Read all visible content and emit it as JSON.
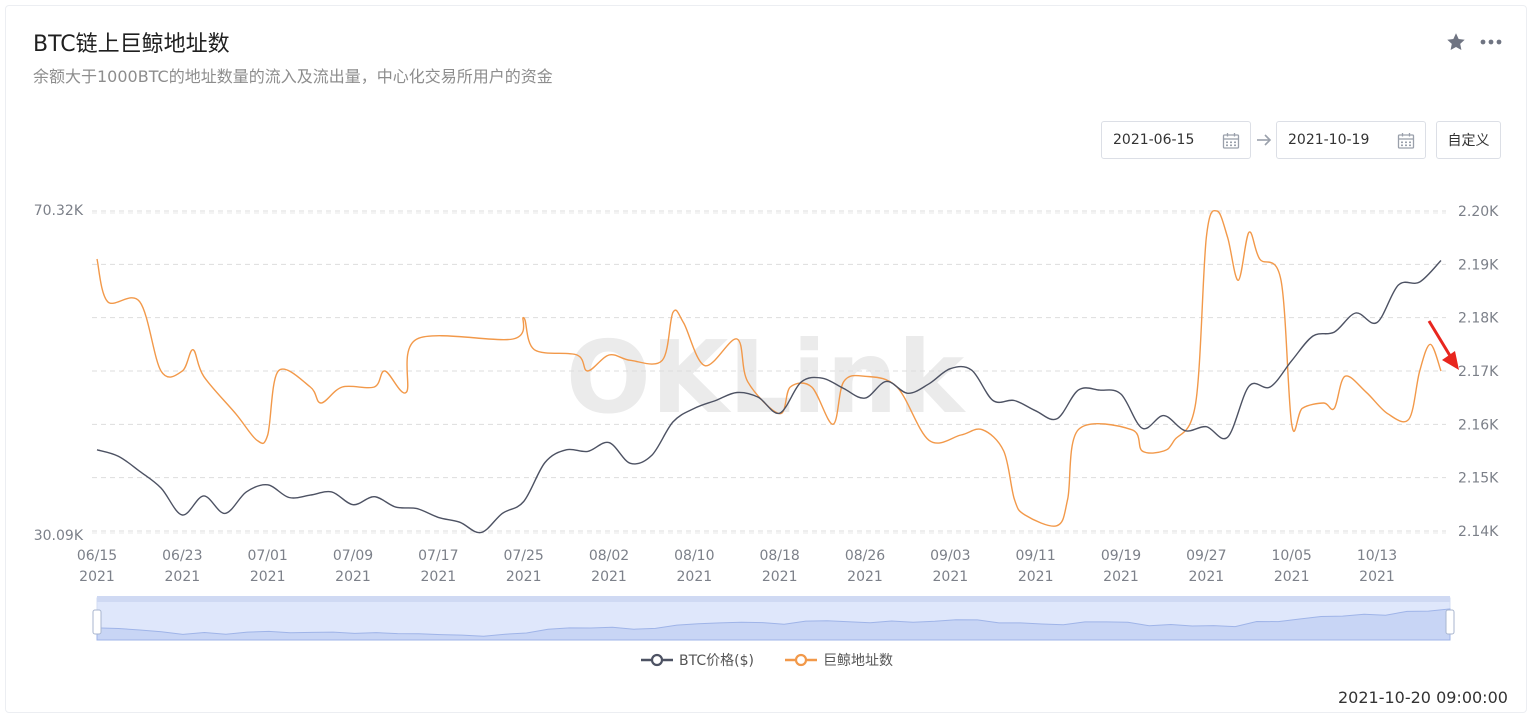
{
  "header": {
    "title": "BTC链上巨鲸地址数",
    "subtitle": "余额大于1000BTC的地址数量的流入及流出量，中心化交易所用户的资金"
  },
  "icons": {
    "favorite": "star-icon",
    "more": "more-icon",
    "calendar": "calendar-icon"
  },
  "date_range": {
    "start": "2021-06-15",
    "end": "2021-10-19",
    "custom_label": "自定义"
  },
  "watermark": "OKLink",
  "timestamp": "2021-10-20 09:00:00",
  "colors": {
    "btc": "#4d5263",
    "whale": "#f2994a",
    "grid": "#e3e3e3",
    "annotation_arrow": "#e8261e",
    "slider_fill": "#dfe7fb"
  },
  "chart_data": {
    "type": "line",
    "x_ticks": [
      [
        "06/15",
        "2021"
      ],
      [
        "06/23",
        "2021"
      ],
      [
        "07/01",
        "2021"
      ],
      [
        "07/09",
        "2021"
      ],
      [
        "07/17",
        "2021"
      ],
      [
        "07/25",
        "2021"
      ],
      [
        "08/02",
        "2021"
      ],
      [
        "08/10",
        "2021"
      ],
      [
        "08/18",
        "2021"
      ],
      [
        "08/26",
        "2021"
      ],
      [
        "09/03",
        "2021"
      ],
      [
        "09/11",
        "2021"
      ],
      [
        "09/19",
        "2021"
      ],
      [
        "09/27",
        "2021"
      ],
      [
        "10/05",
        "2021"
      ],
      [
        "10/13",
        "2021"
      ]
    ],
    "x_range": [
      "2021-06-15",
      "2021-10-19"
    ],
    "y_left": {
      "min_label": "30.09K",
      "max_label": "70.32K",
      "min": 30090,
      "max": 70320
    },
    "y_right": {
      "ticks": [
        "2.20K",
        "2.19K",
        "2.18K",
        "2.17K",
        "2.16K",
        "2.15K",
        "2.14K"
      ],
      "min": 2140,
      "max": 2200
    },
    "grid": true,
    "legend_position": "bottom",
    "series": [
      {
        "name": "BTC价格($)",
        "axis": "left",
        "points": [
          [
            "2021-06-15",
            40300
          ],
          [
            "2021-06-17",
            39500
          ],
          [
            "2021-06-19",
            37600
          ],
          [
            "2021-06-21",
            35500
          ],
          [
            "2021-06-23",
            32100
          ],
          [
            "2021-06-25",
            34500
          ],
          [
            "2021-06-27",
            32300
          ],
          [
            "2021-06-29",
            35000
          ],
          [
            "2021-07-01",
            35900
          ],
          [
            "2021-07-03",
            34300
          ],
          [
            "2021-07-05",
            34600
          ],
          [
            "2021-07-07",
            35000
          ],
          [
            "2021-07-09",
            33400
          ],
          [
            "2021-07-11",
            34400
          ],
          [
            "2021-07-13",
            33100
          ],
          [
            "2021-07-15",
            32900
          ],
          [
            "2021-07-17",
            31800
          ],
          [
            "2021-07-19",
            31200
          ],
          [
            "2021-07-21",
            29900
          ],
          [
            "2021-07-23",
            32300
          ],
          [
            "2021-07-25",
            33800
          ],
          [
            "2021-07-27",
            38700
          ],
          [
            "2021-07-29",
            40300
          ],
          [
            "2021-07-31",
            40100
          ],
          [
            "2021-08-02",
            41200
          ],
          [
            "2021-08-04",
            38600
          ],
          [
            "2021-08-06",
            39600
          ],
          [
            "2021-08-08",
            43800
          ],
          [
            "2021-08-10",
            45500
          ],
          [
            "2021-08-12",
            46500
          ],
          [
            "2021-08-14",
            47500
          ],
          [
            "2021-08-16",
            46900
          ],
          [
            "2021-08-18",
            44900
          ],
          [
            "2021-08-20",
            48800
          ],
          [
            "2021-08-22",
            49300
          ],
          [
            "2021-08-24",
            48000
          ],
          [
            "2021-08-26",
            46800
          ],
          [
            "2021-08-28",
            48900
          ],
          [
            "2021-08-30",
            47400
          ],
          [
            "2021-09-01",
            48600
          ],
          [
            "2021-09-03",
            50500
          ],
          [
            "2021-09-05",
            50300
          ],
          [
            "2021-09-07",
            46500
          ],
          [
            "2021-09-09",
            46500
          ],
          [
            "2021-09-11",
            45200
          ],
          [
            "2021-09-13",
            44200
          ],
          [
            "2021-09-15",
            47800
          ],
          [
            "2021-09-17",
            47800
          ],
          [
            "2021-09-19",
            47300
          ],
          [
            "2021-09-21",
            43000
          ],
          [
            "2021-09-23",
            44600
          ],
          [
            "2021-09-25",
            42700
          ],
          [
            "2021-09-27",
            43200
          ],
          [
            "2021-09-29",
            41900
          ],
          [
            "2021-10-01",
            48300
          ],
          [
            "2021-10-03",
            48200
          ],
          [
            "2021-10-05",
            51500
          ],
          [
            "2021-10-07",
            54600
          ],
          [
            "2021-10-09",
            55100
          ],
          [
            "2021-10-11",
            57500
          ],
          [
            "2021-10-13",
            56300
          ],
          [
            "2021-10-15",
            61000
          ],
          [
            "2021-10-17",
            61400
          ],
          [
            "2021-10-19",
            64100
          ]
        ]
      },
      {
        "name": "巨鲸地址数",
        "axis": "right",
        "points": [
          [
            "2021-06-15",
            2191
          ],
          [
            "2021-06-16",
            2183
          ],
          [
            "2021-06-19",
            2183
          ],
          [
            "2021-06-21",
            2170
          ],
          [
            "2021-06-23",
            2170
          ],
          [
            "2021-06-24",
            2174
          ],
          [
            "2021-06-25",
            2169
          ],
          [
            "2021-06-28",
            2162
          ],
          [
            "2021-06-30",
            2157
          ],
          [
            "2021-07-01",
            2158
          ],
          [
            "2021-07-02",
            2170
          ],
          [
            "2021-07-05",
            2167
          ],
          [
            "2021-07-06",
            2164
          ],
          [
            "2021-07-08",
            2167
          ],
          [
            "2021-07-11",
            2167
          ],
          [
            "2021-07-12",
            2170
          ],
          [
            "2021-07-14",
            2166
          ],
          [
            "2021-07-15",
            2176
          ],
          [
            "2021-07-24",
            2176
          ],
          [
            "2021-07-25",
            2180
          ],
          [
            "2021-07-26",
            2174
          ],
          [
            "2021-07-30",
            2173
          ],
          [
            "2021-07-31",
            2170
          ],
          [
            "2021-08-02",
            2173
          ],
          [
            "2021-08-04",
            2172
          ],
          [
            "2021-08-07",
            2172
          ],
          [
            "2021-08-08",
            2181
          ],
          [
            "2021-08-09",
            2179
          ],
          [
            "2021-08-11",
            2171
          ],
          [
            "2021-08-14",
            2176
          ],
          [
            "2021-08-15",
            2168
          ],
          [
            "2021-08-18",
            2162
          ],
          [
            "2021-08-19",
            2167
          ],
          [
            "2021-08-21",
            2167
          ],
          [
            "2021-08-23",
            2160
          ],
          [
            "2021-08-24",
            2168
          ],
          [
            "2021-08-26",
            2169
          ],
          [
            "2021-08-29",
            2167
          ],
          [
            "2021-09-01",
            2157
          ],
          [
            "2021-09-04",
            2158
          ],
          [
            "2021-09-06",
            2159
          ],
          [
            "2021-09-08",
            2155
          ],
          [
            "2021-09-09",
            2146
          ],
          [
            "2021-09-10",
            2143
          ],
          [
            "2021-09-13",
            2141
          ],
          [
            "2021-09-14",
            2146
          ],
          [
            "2021-09-15",
            2159
          ],
          [
            "2021-09-20",
            2159
          ],
          [
            "2021-09-21",
            2155
          ],
          [
            "2021-09-23",
            2155
          ],
          [
            "2021-09-24",
            2157
          ],
          [
            "2021-09-26",
            2164
          ],
          [
            "2021-09-27",
            2195
          ],
          [
            "2021-09-28",
            2200
          ],
          [
            "2021-09-29",
            2195
          ],
          [
            "2021-09-30",
            2187
          ],
          [
            "2021-10-01",
            2196
          ],
          [
            "2021-10-02",
            2191
          ],
          [
            "2021-10-04",
            2187
          ],
          [
            "2021-10-05",
            2160
          ],
          [
            "2021-10-06",
            2163
          ],
          [
            "2021-10-08",
            2164
          ],
          [
            "2021-10-09",
            2163
          ],
          [
            "2021-10-10",
            2169
          ],
          [
            "2021-10-12",
            2166
          ],
          [
            "2021-10-14",
            2162
          ],
          [
            "2021-10-16",
            2161
          ],
          [
            "2021-10-17",
            2170
          ],
          [
            "2021-10-18",
            2175
          ],
          [
            "2021-10-19",
            2170
          ]
        ]
      }
    ]
  }
}
